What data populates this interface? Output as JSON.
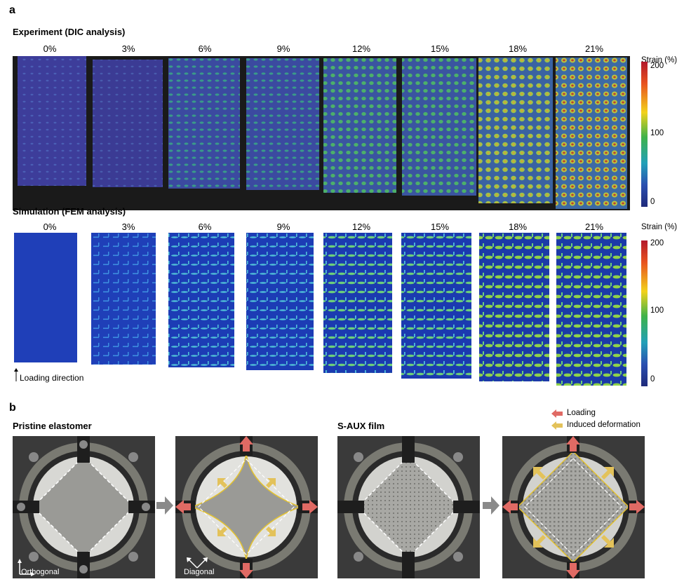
{
  "panel_a": {
    "letter": "a",
    "experiment_title": "Experiment (DIC analysis)",
    "simulation_title": "Simulation (FEM analysis)",
    "strain_levels": [
      "0%",
      "3%",
      "6%",
      "9%",
      "12%",
      "15%",
      "18%",
      "21%"
    ],
    "colorbar": {
      "title": "Strain (%)",
      "ticks": [
        "200",
        "100",
        "0"
      ],
      "colors": [
        "#b2182b",
        "#e8531f",
        "#f2d21b",
        "#3fb24a",
        "#22a0b8",
        "#2a4fb0",
        "#1f2a7a"
      ]
    },
    "loading_direction_label": "Loading direction"
  },
  "panel_b": {
    "letter": "b",
    "pristine_title": "Pristine elastomer",
    "saux_title": "S-AUX film",
    "legend": {
      "loading_label": "Loading",
      "induced_label": "Induced deformation",
      "loading_color": "#e06a64",
      "induced_color": "#e3c25a"
    },
    "axis_orthogonal_label": "Orthogonal",
    "axis_diagonal_label": "Diagonal"
  }
}
